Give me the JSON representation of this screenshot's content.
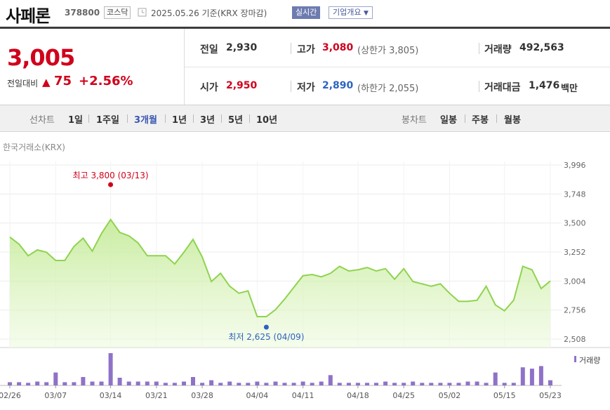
{
  "header": {
    "name": "사페론",
    "code": "378800",
    "market_badge": "코스닥",
    "date": "2025.05.26",
    "date_suffix": "기준(KRX 장마감)",
    "realtime_button": "실시간",
    "company_button": "기업개요"
  },
  "quote": {
    "price": "3,005",
    "change_label": "전일대비",
    "change_value": "75",
    "change_percent": "+2.56%",
    "prev_close_label": "전일",
    "prev_close": "2,930",
    "high_label": "고가",
    "high": "3,080",
    "upper_limit": "(상한가 3,805)",
    "volume_label": "거래량",
    "volume": "492,563",
    "open_label": "시가",
    "open": "2,950",
    "low_label": "저가",
    "low": "2,890",
    "lower_limit": "(하한가 2,055)",
    "trade_value_label": "거래대금",
    "trade_value": "1,476",
    "trade_value_unit": "백만"
  },
  "period_bar": {
    "line_title": "선차트",
    "line_items": [
      "1일",
      "1주일",
      "3개월",
      "1년",
      "3년",
      "5년",
      "10년"
    ],
    "active_item": "3개월",
    "candle_title": "봉차트",
    "candle_items": [
      "일봉",
      "주봉",
      "월봉"
    ]
  },
  "colors": {
    "up": "#d0021b",
    "down": "#2c63c0",
    "line": "#8fd34e",
    "volume": "#8f72c7"
  },
  "chart_data": {
    "type": "area",
    "exchange_label": "한국거래소(KRX)",
    "y_ticks": [
      "3,996",
      "3,748",
      "3,500",
      "3,252",
      "3,004",
      "2,756",
      "2,508"
    ],
    "ylim": [
      2508,
      3996
    ],
    "x_ticks": [
      "02/26",
      "03/07",
      "03/14",
      "03/21",
      "03/28",
      "04/04",
      "04/11",
      "04/18",
      "04/25",
      "05/02",
      "05/15",
      "05/23"
    ],
    "high_annotation": "최고 3,800 (03/13)",
    "low_annotation": "최저 2,625 (04/09)",
    "price_values": [
      3380,
      3320,
      3220,
      3270,
      3250,
      3180,
      3180,
      3300,
      3370,
      3260,
      3410,
      3530,
      3420,
      3390,
      3330,
      3220,
      3220,
      3220,
      3150,
      3250,
      3360,
      3210,
      3000,
      3070,
      2960,
      2900,
      2920,
      2700,
      2700,
      2760,
      2850,
      2950,
      3050,
      3060,
      3040,
      3070,
      3130,
      3090,
      3100,
      3120,
      3090,
      3110,
      3020,
      3110,
      3000,
      2980,
      2960,
      2980,
      2900,
      2830,
      2830,
      2840,
      2960,
      2800,
      2750,
      2840,
      3130,
      3100,
      2940,
      3005
    ],
    "volume_label": "거래량",
    "volume_values": [
      5,
      5,
      4,
      6,
      5,
      20,
      5,
      5,
      13,
      6,
      6,
      50,
      12,
      6,
      6,
      6,
      6,
      4,
      4,
      6,
      13,
      4,
      8,
      4,
      6,
      4,
      4,
      6,
      4,
      6,
      4,
      4,
      6,
      4,
      6,
      16,
      4,
      4,
      4,
      4,
      4,
      6,
      4,
      4,
      6,
      4,
      4,
      4,
      4,
      4,
      6,
      6,
      4,
      20,
      4,
      4,
      28,
      26,
      30,
      8
    ]
  }
}
